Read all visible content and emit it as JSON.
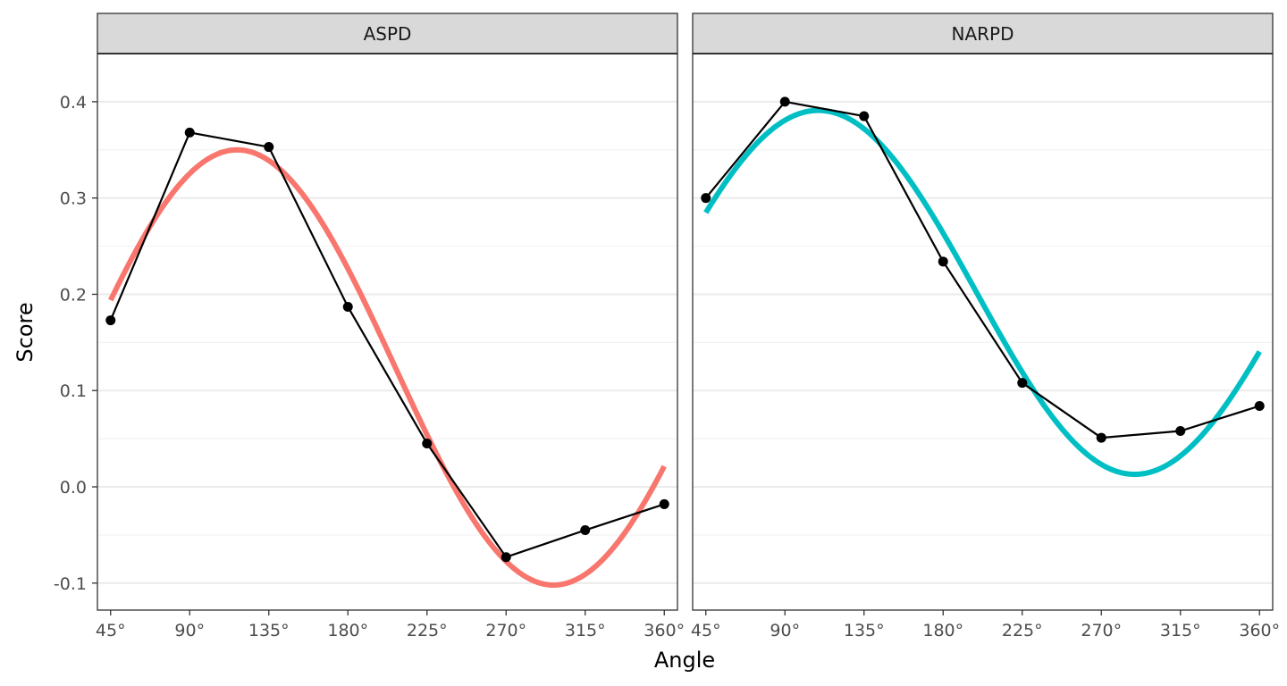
{
  "chart_data": {
    "type": "line",
    "xlabel": "Angle",
    "ylabel": "Score",
    "x_ticks": [
      45,
      90,
      135,
      180,
      225,
      270,
      315,
      360
    ],
    "x_tick_labels": [
      "45°",
      "90°",
      "135°",
      "180°",
      "225°",
      "270°",
      "315°",
      "360°"
    ],
    "y_ticks": [
      -0.1,
      0.0,
      0.1,
      0.2,
      0.3,
      0.4
    ],
    "y_tick_labels": [
      "-0.1",
      "0.0",
      "0.1",
      "0.2",
      "0.3",
      "0.4"
    ],
    "xlim": [
      37.5,
      367.5
    ],
    "ylim": [
      -0.128,
      0.45
    ],
    "grid": true,
    "panels": [
      {
        "name": "ASPD",
        "curve_color": "#F8766D",
        "observed": {
          "x": [
            45,
            90,
            135,
            180,
            225,
            270,
            315,
            360
          ],
          "y": [
            0.173,
            0.368,
            0.353,
            0.187,
            0.045,
            -0.073,
            -0.045,
            -0.018
          ]
        },
        "fit": {
          "elevation": 0.124,
          "amplitude": 0.226,
          "displacement": 117
        }
      },
      {
        "name": "NARPD",
        "curve_color": "#00BFC4",
        "observed": {
          "x": [
            45,
            90,
            135,
            180,
            225,
            270,
            315,
            360
          ],
          "y": [
            0.3,
            0.4,
            0.385,
            0.234,
            0.108,
            0.051,
            0.058,
            0.084
          ]
        },
        "fit": {
          "elevation": 0.202,
          "amplitude": 0.189,
          "displacement": 109
        }
      }
    ]
  }
}
